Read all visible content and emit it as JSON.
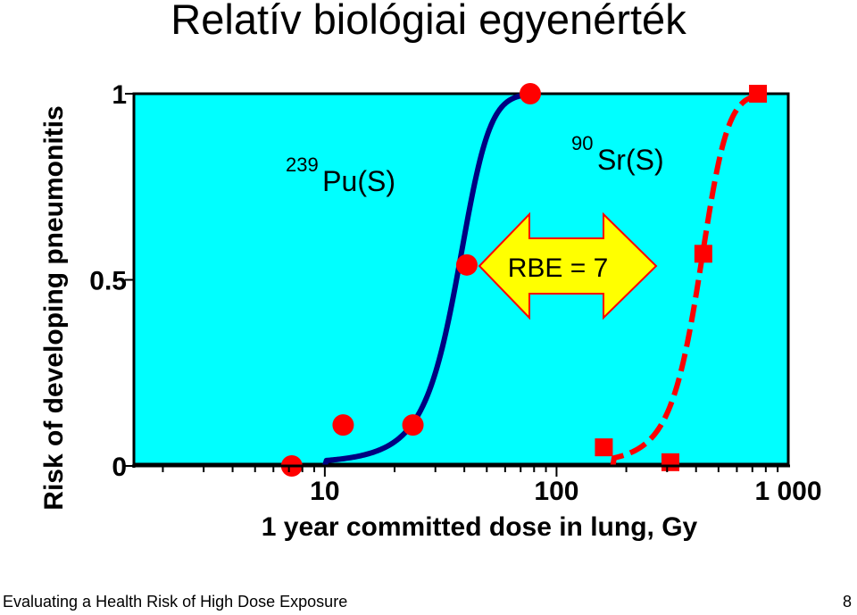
{
  "title": "Relatív biológiai egyenérték",
  "footer": {
    "text": "Evaluating a Health Risk of High Dose Exposure",
    "page": "8"
  },
  "colors": {
    "plot_background": "#00ffff",
    "pu_curve": "#000080",
    "sr_curve": "#ff0000",
    "markers": "#ff0000",
    "arrow_fill": "#ffff00",
    "arrow_stroke": "#ff0000"
  },
  "chart_data": {
    "type": "scatter",
    "x_scale": "log",
    "xlim": [
      1.5,
      1000
    ],
    "ylim": [
      0,
      1
    ],
    "xticks": [
      {
        "value": 10,
        "label": "10"
      },
      {
        "value": 100,
        "label": "100"
      },
      {
        "value": 1000,
        "label": "1 000"
      }
    ],
    "yticks": [
      {
        "value": 0,
        "label": "0"
      },
      {
        "value": 0.5,
        "label": "0.5"
      },
      {
        "value": 1,
        "label": "1"
      }
    ],
    "xlabel": "1 year committed dose in lung, Gy",
    "ylabel": "Risk of developing pneumonitis",
    "grid": false,
    "series": [
      {
        "name_parts": {
          "iso": "239",
          "el": "Pu(S)"
        },
        "marker": "circle",
        "line_style": "solid",
        "points": [
          [
            7.2,
            0
          ],
          [
            12,
            0.11
          ],
          [
            24,
            0.11
          ],
          [
            41,
            0.54
          ],
          [
            77,
            1.0
          ]
        ],
        "curve": {
          "mid": 37,
          "k": 9.5
        }
      },
      {
        "name_parts": {
          "iso": "90",
          "el": "Sr(S)"
        },
        "marker": "square",
        "line_style": "dashed",
        "points": [
          [
            160,
            0.05
          ],
          [
            310,
            0.01
          ],
          [
            430,
            0.57
          ],
          [
            740,
            1.0
          ]
        ],
        "curve": {
          "mid": 410,
          "k": 11
        }
      }
    ],
    "annotations": [
      {
        "label": "RBE = 7",
        "type": "double-arrow"
      }
    ]
  }
}
